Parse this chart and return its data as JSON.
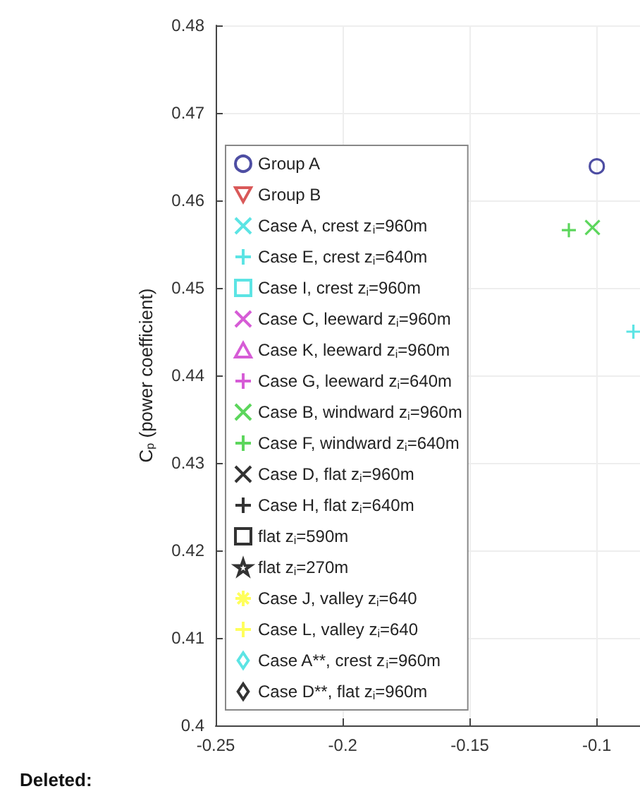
{
  "chart_data": {
    "type": "scatter",
    "ylabel": "C$_{p}$ (power coefficient)",
    "xlim": [
      -0.25,
      -0.083
    ],
    "ylim": [
      0.4,
      0.48
    ],
    "xticks": [
      -0.25,
      -0.2,
      -0.15,
      -0.1
    ],
    "yticks": [
      0.4,
      0.41,
      0.42,
      0.43,
      0.44,
      0.45,
      0.46,
      0.47,
      0.48
    ],
    "grid": true,
    "legend": "left",
    "annotations": [
      "Deleted:"
    ],
    "series": [
      {
        "name": "Group A",
        "color": "#22228c",
        "marker": "circle",
        "x": [
          -0.1
        ],
        "values": [
          0.4639
        ]
      },
      {
        "name": "Group B",
        "color": "#d03030",
        "marker": "triangle-down"
      },
      {
        "name": "Case A, crest z$_{i}$=960m",
        "color": "#33dddd",
        "marker": "cross"
      },
      {
        "name": "Case E, crest z$_{i}$=640m",
        "color": "#33dddd",
        "marker": "plus",
        "x": [
          -0.0856
        ],
        "values": [
          0.445
        ]
      },
      {
        "name": "Case I, crest z$_{i}$=960m",
        "color": "#33dddd",
        "marker": "square"
      },
      {
        "name": "Case C, leeward z$_{i}$=960m",
        "color": "#cc33cc",
        "marker": "cross"
      },
      {
        "name": "Case K, leeward z$_{i}$=960m",
        "color": "#cc33cc",
        "marker": "triangle"
      },
      {
        "name": "Case G, leeward z$_{i}$=640m",
        "color": "#cc33cc",
        "marker": "plus"
      },
      {
        "name": "Case B, windward z$_{i}$=960m",
        "color": "#33cc33",
        "marker": "cross",
        "x": [
          -0.1017
        ],
        "values": [
          0.4569
        ]
      },
      {
        "name": "Case F, windward z$_{i}$=640m",
        "color": "#33cc33",
        "marker": "plus",
        "x": [
          -0.111
        ],
        "values": [
          0.4566
        ]
      },
      {
        "name": "Case D, flat z$_{i}$=960m",
        "color": "#000000",
        "marker": "cross"
      },
      {
        "name": "Case H, flat z$_{i}$=640m",
        "color": "#000000",
        "marker": "plus"
      },
      {
        "name": "flat z$_{i}$=590m",
        "color": "#000000",
        "marker": "square"
      },
      {
        "name": "flat z$_{i}$=270m",
        "color": "#000000",
        "marker": "star"
      },
      {
        "name": "Case J, valley z$_{i}$=640",
        "color": "#ffff33",
        "marker": "asterisk"
      },
      {
        "name": "Case L, valley z$_{i}$=640",
        "color": "#ffff33",
        "marker": "plus"
      },
      {
        "name": "Case A**, crest z$_{i}$=960m",
        "color": "#33dddd",
        "marker": "diamond"
      },
      {
        "name": "Case D**, flat z$_{i}$=960m",
        "color": "#000000",
        "marker": "diamond"
      }
    ]
  }
}
